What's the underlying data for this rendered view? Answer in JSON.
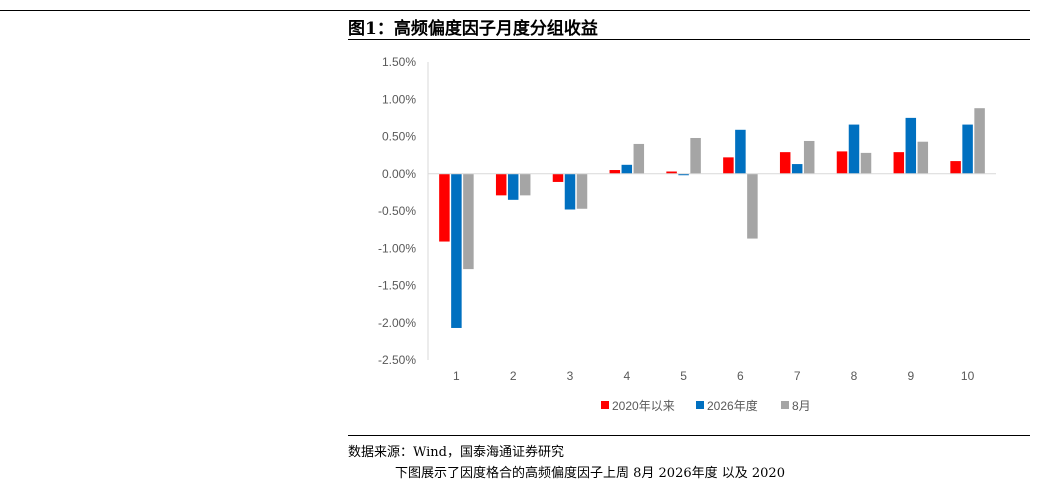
{
  "figure": {
    "title": "图1：高频偏度因子月度分组收益",
    "source": "数据来源：Wind，国泰海通证券研究",
    "caption_fragment": "下图展示了因度格合的高频偏度因子上周 8月 2026年度 以及 2020"
  },
  "chart_data": {
    "type": "bar",
    "categories": [
      "1",
      "2",
      "3",
      "4",
      "5",
      "6",
      "7",
      "8",
      "9",
      "10"
    ],
    "series": [
      {
        "name": "2020年以来",
        "color": "#ff0000",
        "values": [
          -0.91,
          -0.29,
          -0.11,
          0.05,
          0.03,
          0.22,
          0.29,
          0.3,
          0.29,
          0.17
        ]
      },
      {
        "name": "2026年度",
        "color": "#0070c0",
        "values": [
          -2.07,
          -0.35,
          -0.48,
          0.12,
          -0.02,
          0.59,
          0.13,
          0.66,
          0.75,
          0.66
        ]
      },
      {
        "name": "8月",
        "color": "#a5a5a5",
        "values": [
          -1.28,
          -0.29,
          -0.47,
          0.4,
          0.48,
          -0.87,
          0.44,
          0.28,
          0.43,
          0.88
        ]
      }
    ],
    "ylim": [
      -2.5,
      1.5
    ],
    "yticks": [
      "1.50%",
      "1.00%",
      "0.50%",
      "0.00%",
      "-0.50%",
      "-1.00%",
      "-1.50%",
      "-2.00%",
      "-2.50%"
    ],
    "ytick_values": [
      1.5,
      1.0,
      0.5,
      0.0,
      -0.5,
      -1.0,
      -1.5,
      -2.0,
      -2.5
    ],
    "legend_position": "bottom",
    "grid": false
  }
}
